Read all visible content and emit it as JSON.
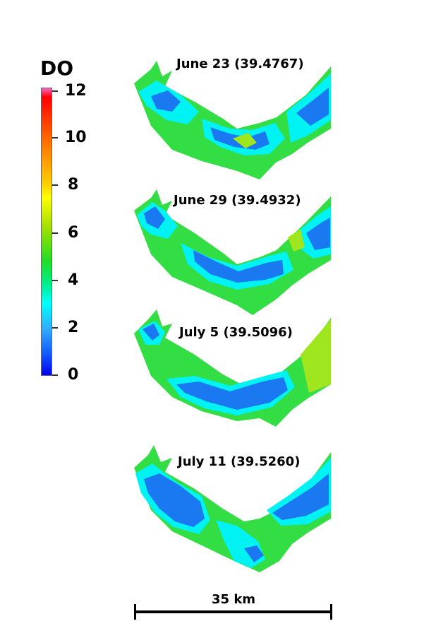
{
  "legend": {
    "title": "DO",
    "ticks": [
      "12",
      "10",
      "8",
      "6",
      "4",
      "2",
      "0"
    ]
  },
  "panels": [
    {
      "label": "June 23 (39.4767)"
    },
    {
      "label": "June 29 (39.4932)"
    },
    {
      "label": "July 5 (39.5096)"
    },
    {
      "label": "July 11 (39.5260)"
    }
  ],
  "scale_bar": {
    "label": "35 km"
  },
  "colors": {
    "high_green": "#9fe61e",
    "green": "#33dd44",
    "cyan": "#00f2f2",
    "blue": "#1a78f0",
    "light_blue": "#66bbff"
  }
}
